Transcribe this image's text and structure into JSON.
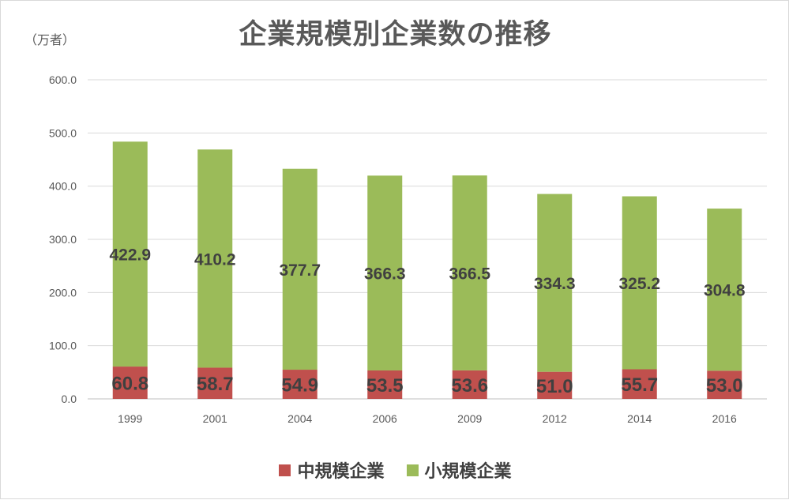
{
  "chart_data": {
    "type": "bar",
    "stacked": true,
    "title": "企業規模別企業数の推移",
    "unit": "（万者）",
    "categories": [
      "1999",
      "2001",
      "2004",
      "2006",
      "2009",
      "2012",
      "2014",
      "2016"
    ],
    "series": [
      {
        "name": "中規模企業",
        "color": "#c0504d",
        "values": [
          60.8,
          58.7,
          54.9,
          53.5,
          53.6,
          51.0,
          55.7,
          53.0
        ],
        "labels": [
          "60.8",
          "58.7",
          "54.9",
          "53.5",
          "53.6",
          "51.0",
          "55.7",
          "53.0"
        ]
      },
      {
        "name": "小規模企業",
        "color": "#9bbb59",
        "values": [
          422.9,
          410.2,
          377.7,
          366.3,
          366.5,
          334.3,
          325.2,
          304.8
        ],
        "labels": [
          "422.9",
          "410.2",
          "377.7",
          "366.3",
          "366.5",
          "334.3",
          "325.2",
          "304.8"
        ]
      }
    ],
    "yticks": [
      "0.0",
      "100.0",
      "200.0",
      "300.0",
      "400.0",
      "500.0",
      "600.0"
    ],
    "ylim": [
      0,
      600
    ],
    "grid": true,
    "legend": "bottom"
  }
}
